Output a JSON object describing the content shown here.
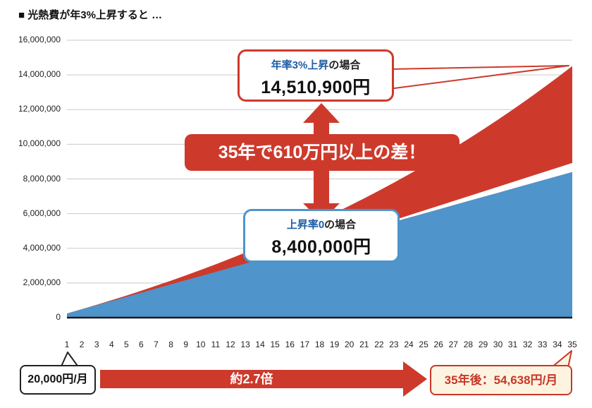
{
  "title": "■ 光熱費が年3%上昇すると …",
  "colors": {
    "red": "#cd3a2c",
    "blue": "#4f94cb",
    "cream": "#fcf4e0",
    "grid": "#c9c9c9",
    "axis": "#1a1a1a",
    "accent_blue_text": "#1d5da6"
  },
  "chart_data": {
    "type": "area",
    "title": "■ 光熱費が年3%上昇すると …",
    "x": [
      1,
      2,
      3,
      4,
      5,
      6,
      7,
      8,
      9,
      10,
      11,
      12,
      13,
      14,
      15,
      16,
      17,
      18,
      19,
      20,
      21,
      22,
      23,
      24,
      25,
      26,
      27,
      28,
      29,
      30,
      31,
      32,
      33,
      34,
      35
    ],
    "series": [
      {
        "name": "年率3%上昇の場合",
        "color": "#cd3a2c",
        "values": [
          240000,
          487200,
          741816,
          1004070,
          1274193,
          1552418,
          1838991,
          2134161,
          2438185,
          2751331,
          3073871,
          3406087,
          3748270,
          4100718,
          4463739,
          4837652,
          5222781,
          5619464,
          6028048,
          6448890,
          6882357,
          7328827,
          7788692,
          8262353,
          8750223,
          9252730,
          9770312,
          10303421,
          10852524,
          11418100,
          12000643,
          12600662,
          13218682,
          13855242,
          14510900
        ]
      },
      {
        "name": "上昇率0の場合",
        "color": "#4f94cb",
        "values": [
          240000,
          480000,
          720000,
          960000,
          1200000,
          1440000,
          1680000,
          1920000,
          2160000,
          2400000,
          2640000,
          2880000,
          3120000,
          3360000,
          3600000,
          3840000,
          4080000,
          4320000,
          4560000,
          4800000,
          5040000,
          5280000,
          5520000,
          5760000,
          6000000,
          6240000,
          6480000,
          6720000,
          6960000,
          7200000,
          7440000,
          7680000,
          7920000,
          8160000,
          8400000
        ]
      }
    ],
    "ylim": [
      0,
      16000000
    ],
    "y_ticks": [
      0,
      2000000,
      4000000,
      6000000,
      8000000,
      10000000,
      12000000,
      14000000,
      16000000
    ],
    "y_tick_labels": [
      "0",
      "2,000,000",
      "4,000,000",
      "6,000,000",
      "8,000,000",
      "10,000,000",
      "12,000,000",
      "14,000,000",
      "16,000,000"
    ],
    "grid": true,
    "legend": "none",
    "xlabel": "",
    "ylabel": ""
  },
  "annotations": {
    "callout_red": {
      "label_colored": "年率3%上昇",
      "label_rest": "の場合",
      "value": "14,510,900円"
    },
    "banner": "35年で610万円以上の差！",
    "callout_blue": {
      "label_colored": "上昇率0",
      "label_rest": "の場合",
      "value": "8,400,000円"
    },
    "bubble_left": "20,000円/月",
    "arrow_label": "約2.7倍",
    "box_right": "35年後：54,638円/月"
  }
}
